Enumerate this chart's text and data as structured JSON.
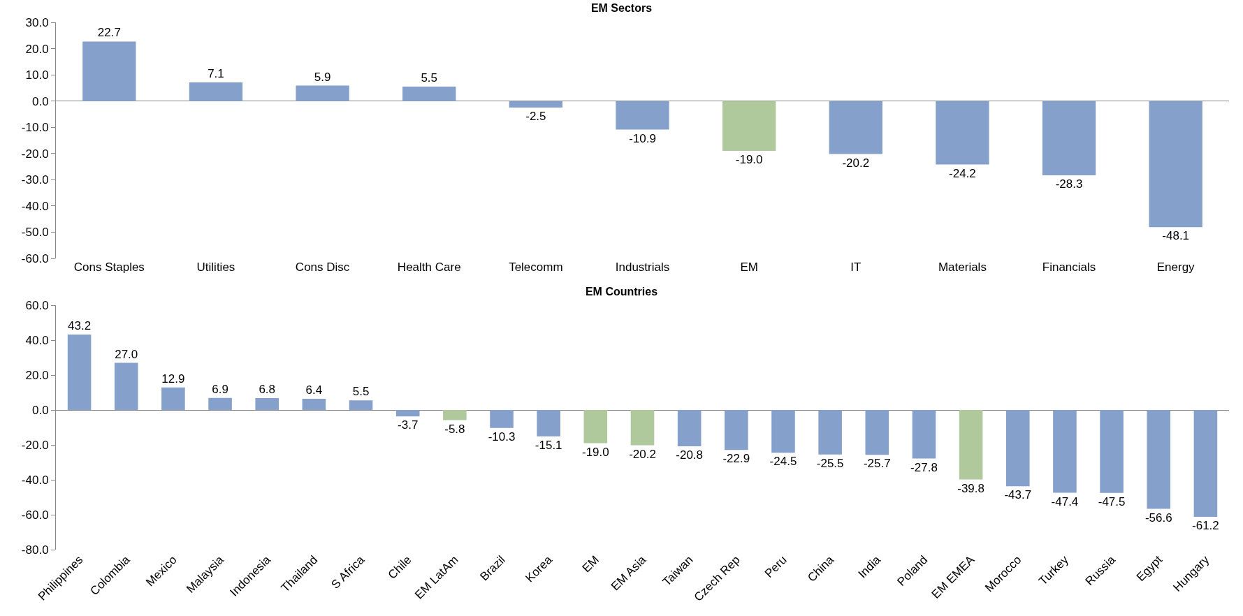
{
  "chart_data": [
    {
      "type": "bar",
      "title": "EM Sectors",
      "categories": [
        "Cons Staples",
        "Utilities",
        "Cons Disc",
        "Health Care",
        "Telecomm",
        "Industrials",
        "EM",
        "IT",
        "Materials",
        "Financials",
        "Energy"
      ],
      "values": [
        22.7,
        7.1,
        5.9,
        5.5,
        -2.5,
        -10.9,
        -19.0,
        -20.2,
        -24.2,
        -28.3,
        -48.1
      ],
      "value_labels": [
        "22.7",
        "7.1",
        "5.9",
        "5.5",
        "-2.5",
        "-10.9",
        "-19.0",
        "-20.2",
        "-24.2",
        "-28.3",
        "-48.1"
      ],
      "colors": [
        "#84a0cb",
        "#84a0cb",
        "#84a0cb",
        "#84a0cb",
        "#84a0cb",
        "#84a0cb",
        "#b0c99c",
        "#84a0cb",
        "#84a0cb",
        "#84a0cb",
        "#84a0cb"
      ],
      "ylim": [
        -60,
        30
      ],
      "yticks": [
        {
          "value": -60,
          "label": "-60.0"
        },
        {
          "value": -50,
          "label": "-50.0"
        },
        {
          "value": -40,
          "label": "-40.0"
        },
        {
          "value": -30,
          "label": "-30.0"
        },
        {
          "value": -20,
          "label": "-20.0"
        },
        {
          "value": -10,
          "label": "-10.0"
        },
        {
          "value": 0,
          "label": "0.0"
        },
        {
          "value": 10,
          "label": "10.0"
        },
        {
          "value": 20,
          "label": "20.0"
        },
        {
          "value": 30,
          "label": "30.0"
        }
      ]
    },
    {
      "type": "bar",
      "title": "EM Countries",
      "categories": [
        "Philippines",
        "Colombia",
        "Mexico",
        "Malaysia",
        "Indonesia",
        "Thailand",
        "S Africa",
        "Chile",
        "EM LatAm",
        "Brazil",
        "Korea",
        "EM",
        "EM Asia",
        "Taiwan",
        "Czech Rep",
        "Peru",
        "China",
        "India",
        "Poland",
        "EM EMEA",
        "Morocco",
        "Turkey",
        "Russia",
        "Egypt",
        "Hungary"
      ],
      "values": [
        43.2,
        27.0,
        12.9,
        6.9,
        6.8,
        6.4,
        5.5,
        -3.7,
        -5.8,
        -10.3,
        -15.1,
        -19.0,
        -20.2,
        -20.8,
        -22.9,
        -24.5,
        -25.5,
        -25.7,
        -27.8,
        -39.8,
        -43.7,
        -47.4,
        -47.5,
        -56.6,
        -61.2
      ],
      "value_labels": [
        "43.2",
        "27.0",
        "12.9",
        "6.9",
        "6.8",
        "6.4",
        "5.5",
        "-3.7",
        "-5.8",
        "-10.3",
        "-15.1",
        "-19.0",
        "-20.2",
        "-20.8",
        "-22.9",
        "-24.5",
        "-25.5",
        "-25.7",
        "-27.8",
        "-39.8",
        "-43.7",
        "-47.4",
        "-47.5",
        "-56.6",
        "-61.2"
      ],
      "colors": [
        "#84a0cb",
        "#84a0cb",
        "#84a0cb",
        "#84a0cb",
        "#84a0cb",
        "#84a0cb",
        "#84a0cb",
        "#84a0cb",
        "#b0c99c",
        "#84a0cb",
        "#84a0cb",
        "#b0c99c",
        "#b0c99c",
        "#84a0cb",
        "#84a0cb",
        "#84a0cb",
        "#84a0cb",
        "#84a0cb",
        "#84a0cb",
        "#b0c99c",
        "#84a0cb",
        "#84a0cb",
        "#84a0cb",
        "#84a0cb",
        "#84a0cb"
      ],
      "ylim": [
        -80,
        60
      ],
      "yticks": [
        {
          "value": -80,
          "label": "-80.0"
        },
        {
          "value": -60,
          "label": "-60.0"
        },
        {
          "value": -40,
          "label": "-40.0"
        },
        {
          "value": -20,
          "label": "-20.0"
        },
        {
          "value": 0,
          "label": "0.0"
        },
        {
          "value": 20,
          "label": "20.0"
        },
        {
          "value": 40,
          "label": "40.0"
        },
        {
          "value": 60,
          "label": "60.0"
        }
      ]
    }
  ]
}
